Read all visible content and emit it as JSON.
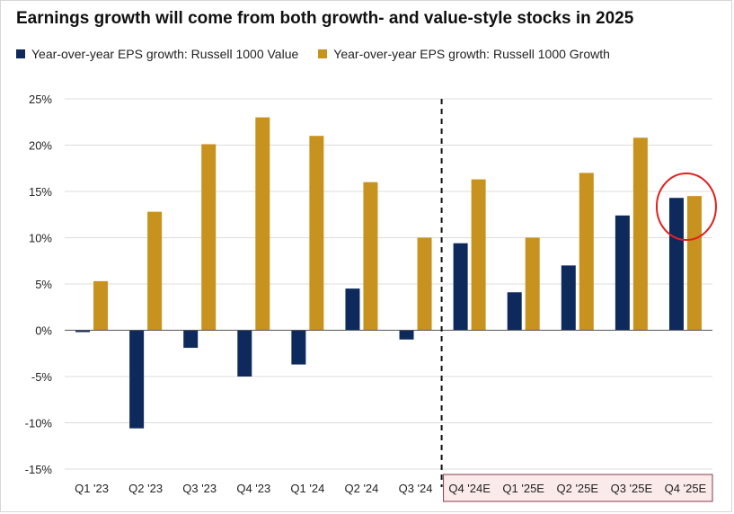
{
  "chart_data": {
    "type": "bar",
    "title": "Earnings growth will come from both growth- and value-style stocks in 2025",
    "categories": [
      "Q1 '23",
      "Q2 '23",
      "Q3 '23",
      "Q4 '23",
      "Q1 '24",
      "Q2 '24",
      "Q3 '24",
      "Q4 '24E",
      "Q1 '25E",
      "Q2 '25E",
      "Q3 '25E",
      "Q4 '25E"
    ],
    "series": [
      {
        "name": "Year-over-year EPS growth: Russell 1000 Value",
        "color": "#0e2a5c",
        "values": [
          -0.2,
          -10.6,
          -1.9,
          -5.0,
          -3.7,
          4.5,
          -1.0,
          9.4,
          4.1,
          7.0,
          12.4,
          14.3
        ]
      },
      {
        "name": "Year-over-year EPS growth: Russell 1000 Growth",
        "color": "#c8921f",
        "values": [
          5.3,
          12.8,
          20.1,
          23.0,
          21.0,
          16.0,
          10.0,
          16.3,
          10.0,
          17.0,
          20.8,
          14.5
        ]
      }
    ],
    "ylim": [
      -15,
      25
    ],
    "yticks": [
      "-15%",
      "-10%",
      "-5%",
      "0%",
      "5%",
      "10%",
      "15%",
      "20%",
      "25%"
    ],
    "grid": true,
    "legend_position": "top",
    "annotations": {
      "divider_style": "dashed vertical line between actual and estimated quarters",
      "estimate_period_highlight": "pink-shaded category label box for estimated quarters",
      "circle_highlight": "red circle around Q4 '25E bars",
      "highlight_color": "#e0211f",
      "estimate_box_color": "#fbeaea"
    }
  }
}
